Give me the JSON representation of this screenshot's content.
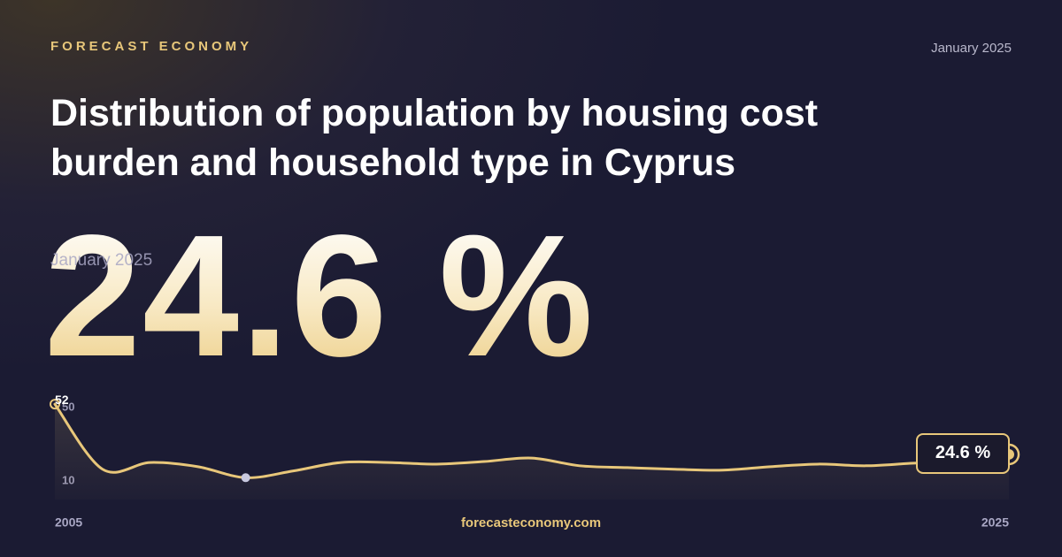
{
  "header": {
    "brand": "FORECAST ECONOMY",
    "date": "January 2025",
    "title": "Distribution of population by housing cost burden and household type in Cyprus"
  },
  "headline": {
    "value": "24.6 %",
    "date": "January 2025"
  },
  "footer": {
    "site": "forecasteconomy.com"
  },
  "chart_data": {
    "type": "line",
    "x": [
      2005,
      2006,
      2007,
      2008,
      2009,
      2010,
      2011,
      2012,
      2013,
      2014,
      2015,
      2016,
      2017,
      2018,
      2019,
      2020,
      2021,
      2022,
      2023,
      2024,
      2025
    ],
    "values": [
      52,
      16.5,
      20.2,
      17.9,
      11.9,
      15.6,
      20.2,
      20.2,
      19.3,
      20.7,
      22.6,
      18.4,
      17.4,
      16.5,
      16,
      17.9,
      19.3,
      18.4,
      19.8,
      20.7,
      24.6
    ],
    "color": "#e8c77a",
    "xlim": [
      2005,
      2025
    ],
    "xticks": [
      2005,
      2025
    ],
    "ylim": [
      0,
      53
    ],
    "yticks": [
      10,
      50
    ],
    "max_label": "52",
    "last_label": "24.6 %"
  }
}
